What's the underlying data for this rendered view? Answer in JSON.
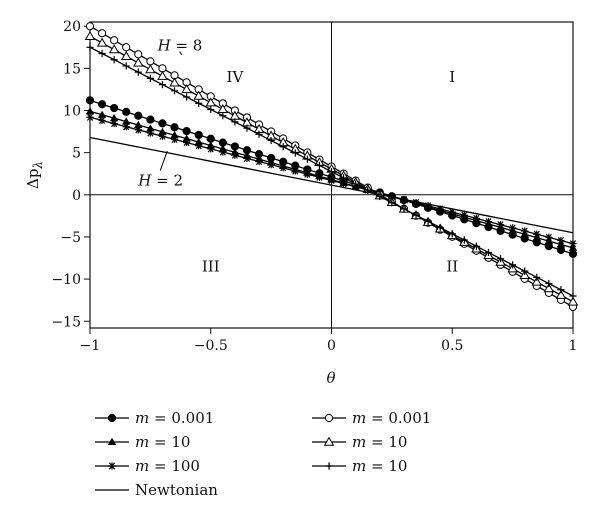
{
  "chart_data": {
    "type": "line",
    "title": "",
    "xlabel": "θ",
    "ylabel": "Δp",
    "ylabel_subscript": "λ",
    "xlim": [
      -1,
      1
    ],
    "ylim": [
      -15.8,
      20.5
    ],
    "x_ticks": [
      -1,
      -0.5,
      0,
      0.5,
      1
    ],
    "x_tick_labels": [
      "−1",
      "−0.5",
      "0",
      "0.5",
      "1"
    ],
    "y_ticks": [
      -15,
      -10,
      -5,
      0,
      5,
      10,
      15,
      20
    ],
    "y_tick_labels": [
      "−15",
      "−10",
      "−5",
      "0",
      "5",
      "10",
      "15",
      "20"
    ],
    "grid": false,
    "axis_lines": {
      "x": 0,
      "y": 0
    },
    "regions": [
      {
        "label": "I",
        "x": 0.5,
        "y": 14
      },
      {
        "label": "II",
        "x": 0.5,
        "y": -8.5
      },
      {
        "label": "III",
        "x": -0.5,
        "y": -8.5
      },
      {
        "label": "IV",
        "x": -0.4,
        "y": 14
      }
    ],
    "annotations": [
      {
        "var": "H",
        "eq": " = 8",
        "x": -0.72,
        "y": 17.7,
        "arrow_to": [
          -0.62,
          16.6
        ]
      },
      {
        "var": "H",
        "eq": " = 2",
        "x": -0.8,
        "y": 1.7,
        "arrow_to": [
          -0.68,
          5.2
        ]
      }
    ],
    "x": [
      -1,
      -0.95,
      -0.9,
      -0.85,
      -0.8,
      -0.75,
      -0.7,
      -0.65,
      -0.6,
      -0.55,
      -0.5,
      -0.45,
      -0.4,
      -0.35,
      -0.3,
      -0.25,
      -0.2,
      -0.15,
      -0.1,
      -0.05,
      0,
      0.05,
      0.1,
      0.15,
      0.2,
      0.25,
      0.3,
      0.35,
      0.4,
      0.45,
      0.5,
      0.55,
      0.6,
      0.65,
      0.7,
      0.75,
      0.8,
      0.85,
      0.9,
      0.95,
      1
    ],
    "series": [
      {
        "name": "m = 0.001",
        "group": "H = 2",
        "marker": "filled-circle",
        "y0": 11.2,
        "y1": -7.0
      },
      {
        "name": "m = 10",
        "group": "H = 2",
        "marker": "filled-triangle",
        "y0": 9.9,
        "y1": -6.3
      },
      {
        "name": "m = 100",
        "group": "H = 2",
        "marker": "asterisk",
        "y0": 9.2,
        "y1": -5.8
      },
      {
        "name": "m = 0.001",
        "group": "H = 8",
        "marker": "open-circle",
        "y0": 20.0,
        "y1": -13.3
      },
      {
        "name": "m = 10",
        "group": "H = 8",
        "marker": "open-triangle",
        "y0": 18.8,
        "y1": -12.7
      },
      {
        "name": "m = 10",
        "group": "H = 8",
        "marker": "plus",
        "y0": 17.5,
        "y1": -12.0
      },
      {
        "name": "Newtonian",
        "marker": "none",
        "y0": 6.8,
        "y1": -4.5
      }
    ],
    "legend": {
      "placement": "bottom",
      "entries": [
        {
          "var": "m",
          "value": " = 0.001",
          "marker": "filled-circle"
        },
        {
          "var": "m",
          "value": " = 10",
          "marker": "filled-triangle"
        },
        {
          "var": "m",
          "value": " = 100",
          "marker": "asterisk"
        },
        {
          "var": "",
          "value": "Newtonian",
          "marker": "none"
        },
        {
          "var": "m",
          "value": " = 0.001",
          "marker": "open-circle"
        },
        {
          "var": "m",
          "value": " = 10",
          "marker": "open-triangle"
        },
        {
          "var": "m",
          "value": " = 10",
          "marker": "plus"
        }
      ]
    }
  }
}
